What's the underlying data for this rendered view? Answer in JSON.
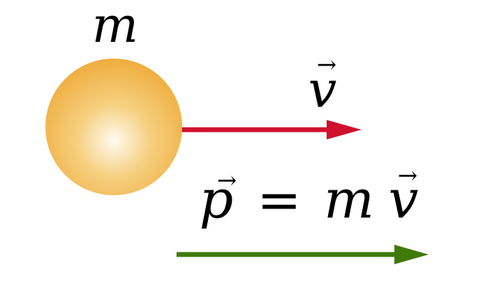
{
  "mass_label": "m",
  "velocity_label": {
    "symbol": "v",
    "arrow": "→"
  },
  "momentum_equation": {
    "lhs_symbol": "p",
    "arrow": "→",
    "equals": "=",
    "rhs_mass": "m",
    "rhs_velocity": "v"
  },
  "colors": {
    "ball_center": "#fffaf0",
    "ball_mid": "#f6cf7f",
    "ball_edge": "#efad3d",
    "velocity_arrow": "#d0102d",
    "momentum_arrow": "#3f7a08",
    "text": "#000000"
  },
  "icons": {
    "mass": "sphere-icon",
    "velocity": "arrow-right-icon",
    "momentum": "arrow-right-icon"
  }
}
